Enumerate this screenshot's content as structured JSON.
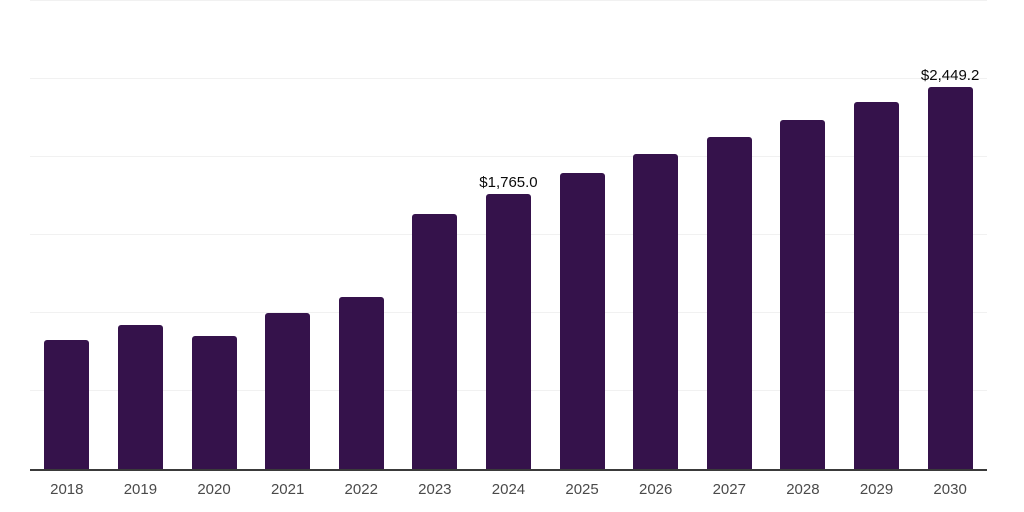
{
  "chart_data": {
    "type": "bar",
    "title": "",
    "xlabel": "",
    "ylabel": "",
    "categories": [
      "2018",
      "2019",
      "2020",
      "2021",
      "2022",
      "2023",
      "2024",
      "2025",
      "2026",
      "2027",
      "2028",
      "2029",
      "2030"
    ],
    "values": [
      825,
      920,
      855,
      1000,
      1100,
      1635,
      1765.0,
      1895,
      2020,
      2130,
      2240,
      2350,
      2449.2
    ],
    "labeled_points": [
      {
        "category": "2024",
        "label": "$1,765.0"
      },
      {
        "category": "2030",
        "label": "$2,449.2"
      }
    ],
    "ylim": [
      0,
      3000
    ],
    "gridline_step": 500,
    "grid": "horizontal",
    "legend_position": "none",
    "y_tick_labels_visible": false,
    "colors": {
      "bar": "#35124B",
      "axis_line": "#3a3a3a",
      "gridline": "#f1f1f1",
      "tick_label": "#4a4a4a",
      "data_label": "#0a0a0a",
      "background": "#ffffff"
    }
  }
}
